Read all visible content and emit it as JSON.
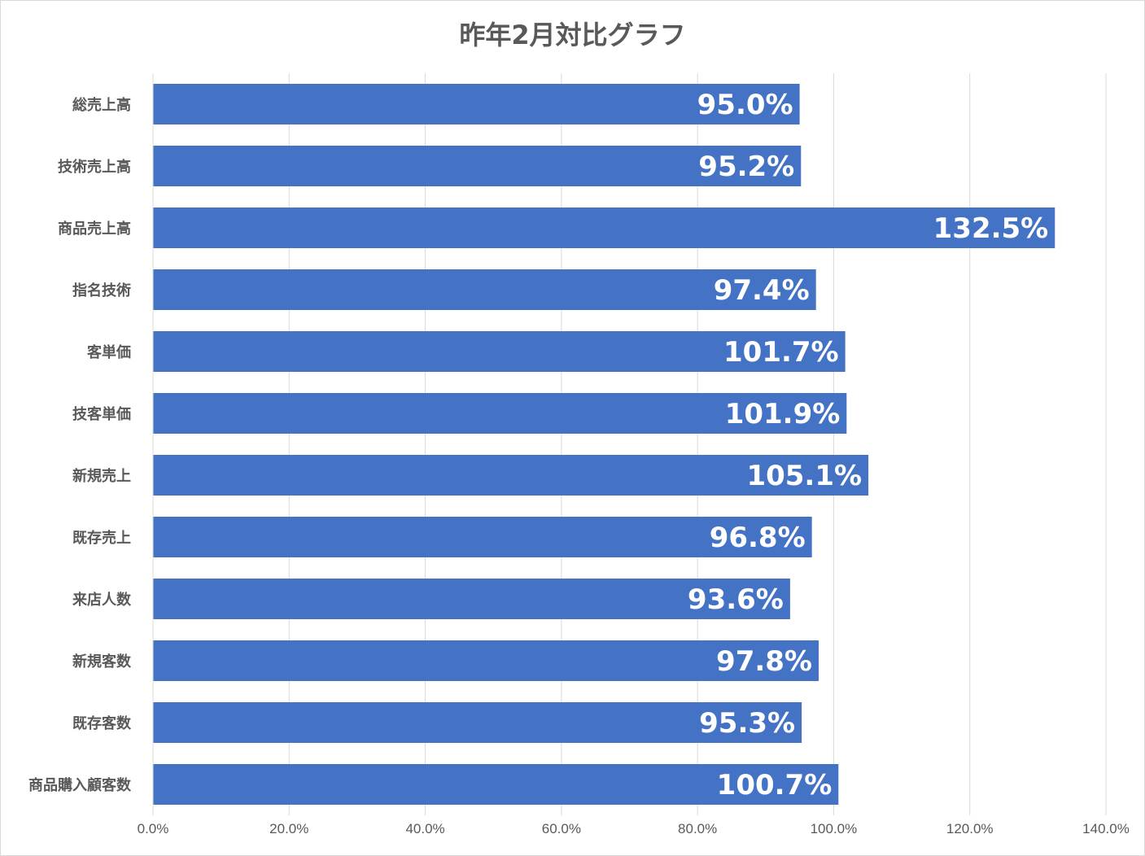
{
  "chart_data": {
    "type": "bar",
    "orientation": "horizontal",
    "title": "昨年2月対比グラフ",
    "categories": [
      "総売上高",
      "技術売上高",
      "商品売上高",
      "指名技術",
      "客単価",
      "技客単価",
      "新規売上",
      "既存売上",
      "来店人数",
      "新規客数",
      "既存客数",
      "商品購入顧客数"
    ],
    "values": [
      95.0,
      95.2,
      132.5,
      97.4,
      101.7,
      101.9,
      105.1,
      96.8,
      93.6,
      97.8,
      95.3,
      100.7
    ],
    "value_labels": [
      "95.0%",
      "95.2%",
      "132.5%",
      "97.4%",
      "101.7%",
      "101.9%",
      "105.1%",
      "96.8%",
      "93.6%",
      "97.8%",
      "95.3%",
      "100.7%"
    ],
    "xlim": [
      0,
      140
    ],
    "x_ticks": [
      0,
      20,
      40,
      60,
      80,
      100,
      120,
      140
    ],
    "x_tick_labels": [
      "0.0%",
      "20.0%",
      "40.0%",
      "60.0%",
      "80.0%",
      "100.0%",
      "120.0%",
      "140.0%"
    ],
    "grid": true,
    "legend": "none",
    "bar_color": "#4472c4",
    "grid_color": "#d9d9d9"
  }
}
